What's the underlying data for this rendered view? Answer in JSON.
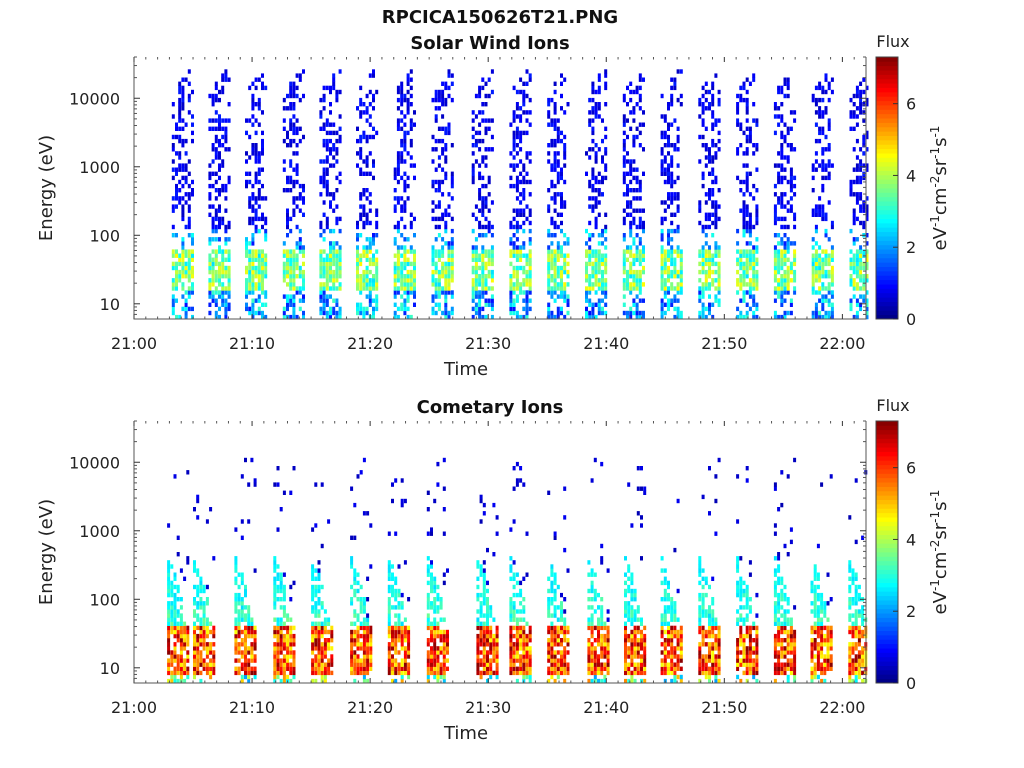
{
  "figure": {
    "title": "RPCICA150626T21.PNG"
  },
  "chart_data": [
    {
      "type": "heatmap",
      "title": "Solar Wind Ions",
      "xlabel": "Time",
      "ylabel": "Energy (eV)",
      "x_range": [
        "21:00",
        "22:02"
      ],
      "x_ticks": [
        "21:00",
        "21:10",
        "21:20",
        "21:30",
        "21:40",
        "21:50",
        "22:00"
      ],
      "y_scale": "log",
      "y_range": [
        6,
        40000
      ],
      "y_ticks": [
        "10",
        "100",
        "1000",
        "10000"
      ],
      "colorbar": {
        "label": "Flux",
        "unit": "eV-1cm-2sr-1s-1",
        "range": [
          0,
          7.3
        ],
        "ticks": [
          "0",
          "2",
          "4",
          "6"
        ],
        "colormap": "jet"
      },
      "sweeps_start_min": [
        3.2,
        6.3,
        9.4,
        12.6,
        15.7,
        18.8,
        22.0,
        25.2,
        28.6,
        31.8,
        35.0,
        38.2,
        41.4,
        44.6,
        47.8,
        51.0,
        54.2,
        57.4,
        60.6
      ],
      "features": {
        "low_energy_band_eV": [
          15,
          60
        ],
        "low_energy_peak_level": 4.2,
        "high_energy_scatter_max_eV": 20000,
        "high_energy_scatter_level": 0.8
      }
    },
    {
      "type": "heatmap",
      "title": "Cometary Ions",
      "xlabel": "Time",
      "ylabel": "Energy (eV)",
      "x_range": [
        "21:00",
        "22:02"
      ],
      "x_ticks": [
        "21:00",
        "21:10",
        "21:20",
        "21:30",
        "21:40",
        "21:50",
        "22:00"
      ],
      "y_scale": "log",
      "y_range": [
        6,
        40000
      ],
      "y_ticks": [
        "10",
        "100",
        "1000",
        "10000"
      ],
      "colorbar": {
        "label": "Flux",
        "unit": "eV-1cm-2sr-1s-1",
        "range": [
          0,
          7.3
        ],
        "ticks": [
          "0",
          "2",
          "4",
          "6"
        ],
        "colormap": "jet"
      },
      "sweeps_start_min": [
        2.8,
        5.0,
        8.5,
        11.8,
        15.0,
        18.3,
        21.5,
        24.8,
        29.0,
        31.8,
        35.0,
        38.4,
        41.5,
        44.6,
        47.8,
        51.0,
        54.2,
        57.3,
        60.5
      ],
      "features": {
        "low_energy_band_eV": [
          8,
          40
        ],
        "low_energy_peak_level": 6.9,
        "mid_energy_tail_max_eV": 400,
        "high_energy_scatter_max_eV": 12000,
        "high_energy_scatter_level": 0.6
      }
    }
  ]
}
